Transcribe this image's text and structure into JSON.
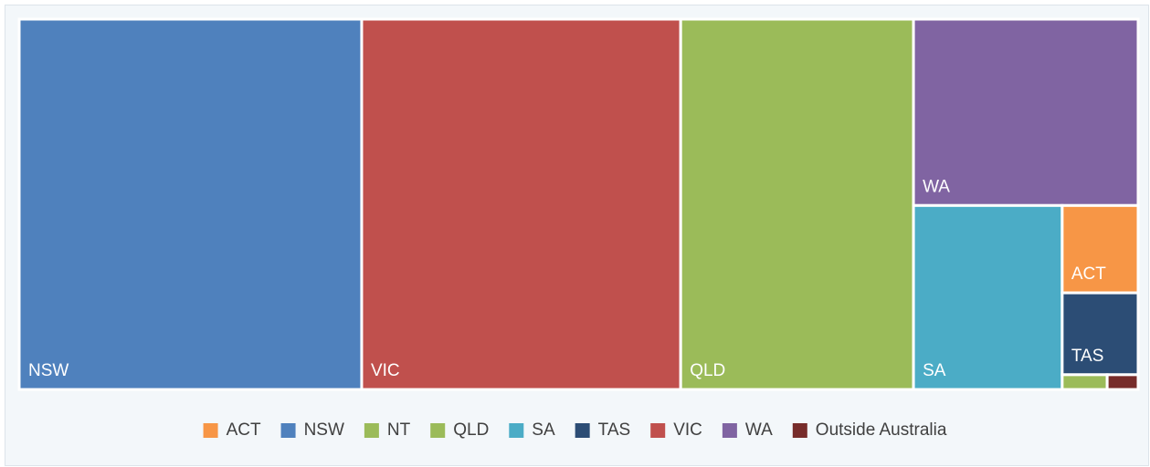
{
  "chart_data": {
    "type": "treemap",
    "categories": [
      "ACT",
      "NSW",
      "NT",
      "QLD",
      "SA",
      "TAS",
      "VIC",
      "WA",
      "Outside Australia"
    ],
    "values": [
      1.6,
      30.6,
      0.16,
      20.8,
      6.6,
      1.5,
      28.5,
      10.1,
      0.11
    ],
    "colors": [
      "#f79646",
      "#4f81bd",
      "#9bbb59",
      "#9bbb59",
      "#4bacc6",
      "#2c4d75",
      "#c0504d",
      "#8064a2",
      "#772c2a"
    ],
    "legend": "bottom"
  }
}
